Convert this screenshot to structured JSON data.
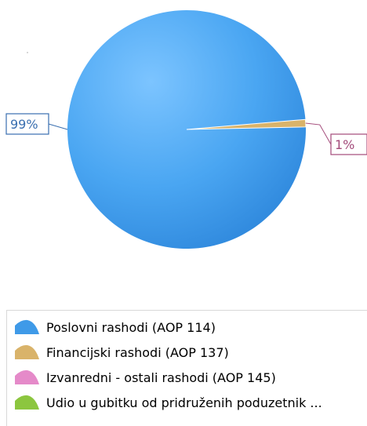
{
  "chart_data": {
    "type": "pie",
    "series": [
      {
        "name": "Poslovni rashodi (AOP 114)",
        "value": 99,
        "color": "#3f9ae8",
        "label": "99%"
      },
      {
        "name": "Financijski rashodi (AOP 137)",
        "value": 1,
        "color": "#d9b36a",
        "label": "1%"
      },
      {
        "name": "Izvanredni - ostali rashodi (AOP 145)",
        "value": 0,
        "color": "#e58ac9",
        "label": ""
      },
      {
        "name": "Udio u gubitku od pridruženih poduzetnik ...",
        "value": 0,
        "color": "#8cc63f",
        "label": ""
      }
    ],
    "legend_position": "bottom"
  }
}
